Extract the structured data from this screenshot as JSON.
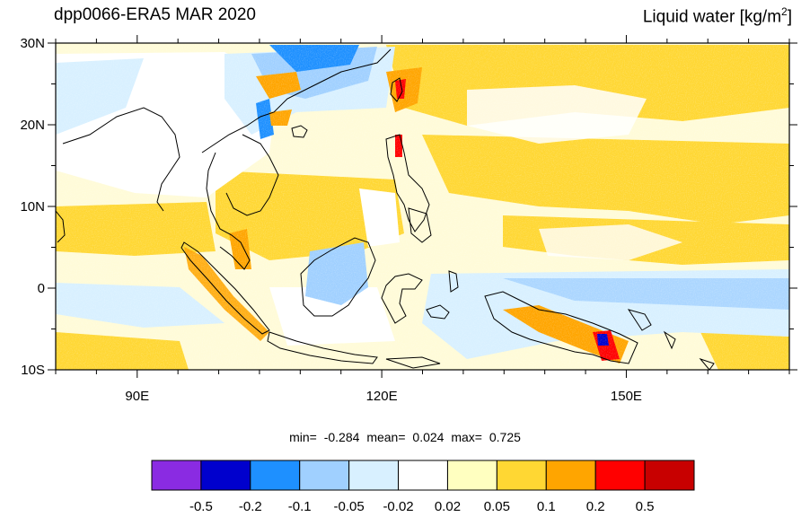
{
  "header": {
    "title_left": "dpp0066-ERA5 MAR 2020",
    "title_right": "Liquid water  [kg/m",
    "title_right_sup": "2",
    "title_right_end": "]"
  },
  "map": {
    "lon_range": [
      80,
      170
    ],
    "lat_range": [
      -10,
      30
    ],
    "lat_ticks": [
      {
        "value": 30,
        "label": "30N"
      },
      {
        "value": 20,
        "label": "20N"
      },
      {
        "value": 10,
        "label": "10N"
      },
      {
        "value": 0,
        "label": "0"
      },
      {
        "value": -10,
        "label": "10S"
      }
    ],
    "lon_ticks": [
      {
        "value": 90,
        "label": "90E"
      },
      {
        "value": 120,
        "label": "120E"
      },
      {
        "value": 150,
        "label": "150E"
      }
    ]
  },
  "stats": {
    "min_label": "min=",
    "min_value": "-0.284",
    "mean_label": "mean=",
    "mean_value": "0.024",
    "max_label": "max=",
    "max_value": "0.725"
  },
  "colorbar": {
    "colors": [
      "#8a2be2",
      "#0000cd",
      "#1e90ff",
      "#a0d0ff",
      "#d8f0ff",
      "#ffffff",
      "#ffffc0",
      "#ffd733",
      "#ffa500",
      "#ff0000",
      "#c80000"
    ],
    "labels": [
      "-0.5",
      "-0.2",
      "-0.1",
      "-0.05",
      "-0.02",
      "0.02",
      "0.05",
      "0.1",
      "0.2",
      "0.5"
    ]
  }
}
